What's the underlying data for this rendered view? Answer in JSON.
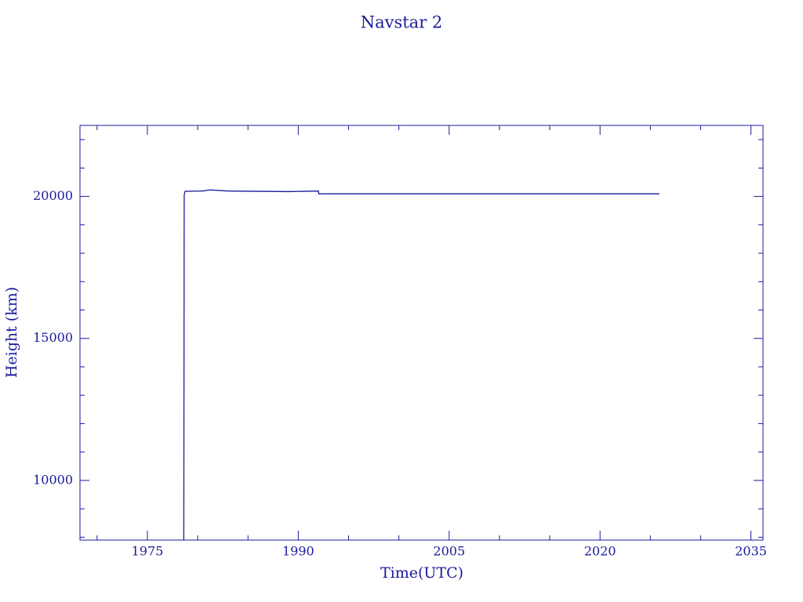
{
  "chart_data": {
    "type": "line",
    "title": "Navstar 2",
    "x_label": "Time(UTC)",
    "y_label": "Height (km)",
    "color": "#1a1a9a",
    "x": [
      1978.62,
      1978.66,
      1978.75,
      1980.5,
      1981.2,
      1983.0,
      1986.0,
      1989.0,
      1992.0,
      1992.05,
      2025.9
    ],
    "values": [
      7900,
      20050,
      20180,
      20190,
      20230,
      20190,
      20180,
      20170,
      20190,
      20090,
      20090
    ],
    "xlim": [
      1968.3,
      2036.2
    ],
    "ylim": [
      7900,
      22500
    ],
    "xticks": [
      1975,
      1990,
      2005,
      2020,
      2035
    ],
    "yticks": [
      10000,
      15000,
      20000
    ],
    "xminorticks": [
      1970,
      1980,
      1985,
      1995,
      2000,
      2010,
      2015,
      2025,
      2030
    ],
    "yminorticks": [
      8000,
      9000,
      11000,
      12000,
      13000,
      14000,
      16000,
      17000,
      18000,
      19000,
      21000,
      22000
    ]
  }
}
